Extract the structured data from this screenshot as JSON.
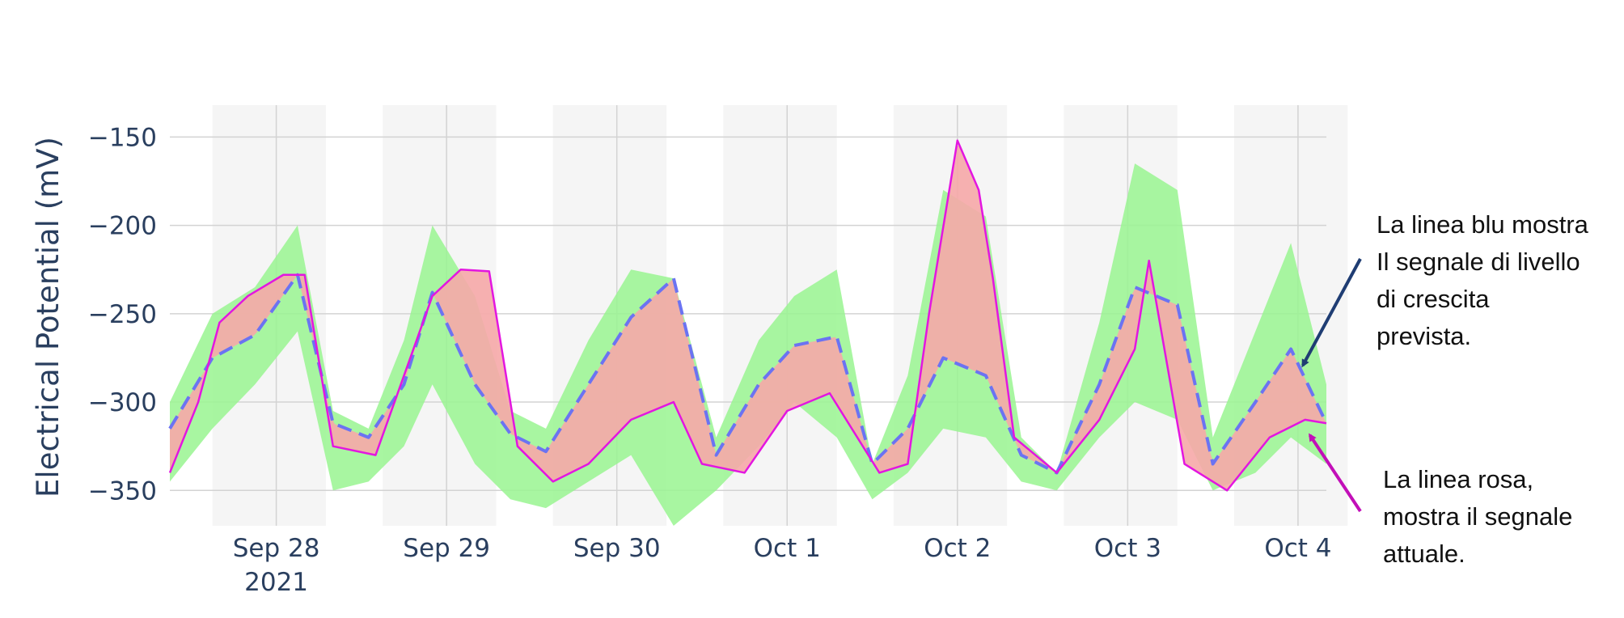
{
  "chart_data": {
    "type": "line",
    "ylabel": "Electrical Potential (mV)",
    "x_ticks": [
      {
        "label": "Sep 28",
        "sublabel": "2021",
        "date": "2021-09-28T12:00"
      },
      {
        "label": "Sep 29",
        "sublabel": "",
        "date": "2021-09-29T12:00"
      },
      {
        "label": "Sep 30",
        "sublabel": "",
        "date": "2021-09-30T12:00"
      },
      {
        "label": "Oct 1",
        "sublabel": "",
        "date": "2021-10-01T12:00"
      },
      {
        "label": "Oct 2",
        "sublabel": "",
        "date": "2021-10-02T12:00"
      },
      {
        "label": "Oct 3",
        "sublabel": "",
        "date": "2021-10-03T12:00"
      },
      {
        "label": "Oct 4",
        "sublabel": "",
        "date": "2021-10-04T12:00"
      }
    ],
    "xlim": [
      "2021-09-27T21:00",
      "2021-10-04T16:00"
    ],
    "ylim": [
      -370,
      -132
    ],
    "y_ticks": [
      -150,
      -200,
      -250,
      -300,
      -350
    ],
    "grid": true,
    "night_bands": [
      [
        "2021-09-28T03:00",
        "2021-09-28T19:00"
      ],
      [
        "2021-09-29T03:00",
        "2021-09-29T19:00"
      ],
      [
        "2021-09-30T03:00",
        "2021-09-30T19:00"
      ],
      [
        "2021-10-01T03:00",
        "2021-10-01T19:00"
      ],
      [
        "2021-10-02T03:00",
        "2021-10-02T19:00"
      ],
      [
        "2021-10-03T03:00",
        "2021-10-03T19:00"
      ],
      [
        "2021-10-04T03:00",
        "2021-10-04T19:00"
      ]
    ],
    "colors": {
      "band": "#99f590",
      "deviation": "#f6a8a8",
      "predicted": "#6b73f2",
      "actual": "#e316e0",
      "night": "#f5f5f5",
      "grid": "#d3d3d3",
      "blue_arrow": "#1f3d73",
      "pink_arrow": "#c20fb8"
    },
    "series": [
      {
        "style": "band",
        "x": [
          "2021-09-27T21:00",
          "2021-09-28T03:00",
          "2021-09-28T09:00",
          "2021-09-28T15:00",
          "2021-09-28T20:00",
          "2021-09-29T01:00",
          "2021-09-29T06:00",
          "2021-09-29T10:00",
          "2021-09-29T16:00",
          "2021-09-29T21:00",
          "2021-09-30T02:00",
          "2021-09-30T08:00",
          "2021-09-30T14:00",
          "2021-09-30T20:00",
          "2021-10-01T02:00",
          "2021-10-01T08:00",
          "2021-10-01T13:00",
          "2021-10-01T19:00",
          "2021-10-02T00:00",
          "2021-10-02T05:00",
          "2021-10-02T10:00",
          "2021-10-02T16:00",
          "2021-10-02T21:00",
          "2021-10-03T02:00",
          "2021-10-03T08:00",
          "2021-10-03T13:00",
          "2021-10-03T19:00",
          "2021-10-04T00:00",
          "2021-10-04T06:00",
          "2021-10-04T11:00",
          "2021-10-04T16:00"
        ],
        "upper": [
          -300,
          -250,
          -235,
          -200,
          -305,
          -315,
          -265,
          -200,
          -240,
          -305,
          -315,
          -265,
          -225,
          -230,
          -320,
          -265,
          -240,
          -225,
          -335,
          -285,
          -180,
          -195,
          -320,
          -340,
          -255,
          -165,
          -180,
          -320,
          -260,
          -210,
          -290
        ],
        "lower": [
          -345,
          -315,
          -290,
          -260,
          -350,
          -345,
          -325,
          -290,
          -335,
          -355,
          -360,
          -345,
          -330,
          -370,
          -350,
          -325,
          -300,
          -320,
          -355,
          -340,
          -315,
          -320,
          -345,
          -350,
          -320,
          -300,
          -310,
          -350,
          -340,
          -320,
          -335
        ]
      },
      {
        "name": "Il segnale di livello di crescita prevista",
        "style": "dashed",
        "x": [
          "2021-09-27T21:00",
          "2021-09-28T03:00",
          "2021-09-28T09:00",
          "2021-09-28T15:00",
          "2021-09-28T20:00",
          "2021-09-29T01:00",
          "2021-09-29T06:00",
          "2021-09-29T10:00",
          "2021-09-29T16:00",
          "2021-09-29T21:00",
          "2021-09-30T02:00",
          "2021-09-30T08:00",
          "2021-09-30T14:00",
          "2021-09-30T20:00",
          "2021-10-01T02:00",
          "2021-10-01T08:00",
          "2021-10-01T13:00",
          "2021-10-01T19:00",
          "2021-10-02T00:00",
          "2021-10-02T05:00",
          "2021-10-02T10:00",
          "2021-10-02T16:00",
          "2021-10-02T21:00",
          "2021-10-03T02:00",
          "2021-10-03T08:00",
          "2021-10-03T13:00",
          "2021-10-03T19:00",
          "2021-10-04T00:00",
          "2021-10-04T06:00",
          "2021-10-04T11:00",
          "2021-10-04T16:00"
        ],
        "y": [
          -315,
          -275,
          -262,
          -228,
          -312,
          -320,
          -290,
          -238,
          -290,
          -318,
          -328,
          -290,
          -252,
          -230,
          -330,
          -290,
          -268,
          -263,
          -335,
          -315,
          -275,
          -285,
          -330,
          -340,
          -290,
          -235,
          -245,
          -335,
          -300,
          -270,
          -312
        ]
      },
      {
        "name": "Il segnale attuale",
        "style": "solid",
        "x": [
          "2021-09-27T21:00",
          "2021-09-28T01:00",
          "2021-09-28T04:00",
          "2021-09-28T08:00",
          "2021-09-28T13:00",
          "2021-09-28T16:00",
          "2021-09-28T20:00",
          "2021-09-29T02:00",
          "2021-09-29T06:00",
          "2021-09-29T10:00",
          "2021-09-29T14:00",
          "2021-09-29T18:00",
          "2021-09-29T22:00",
          "2021-09-30T03:00",
          "2021-09-30T08:00",
          "2021-09-30T14:00",
          "2021-09-30T20:00",
          "2021-10-01T00:00",
          "2021-10-01T06:00",
          "2021-10-01T12:00",
          "2021-10-01T18:00",
          "2021-10-02T01:00",
          "2021-10-02T05:00",
          "2021-10-02T08:00",
          "2021-10-02T12:00",
          "2021-10-02T15:00",
          "2021-10-02T17:00",
          "2021-10-02T20:00",
          "2021-10-03T02:00",
          "2021-10-03T08:00",
          "2021-10-03T13:00",
          "2021-10-03T15:00",
          "2021-10-03T20:00",
          "2021-10-04T02:00",
          "2021-10-04T08:00",
          "2021-10-04T13:00",
          "2021-10-04T16:00"
        ],
        "y": [
          -340,
          -300,
          -255,
          -240,
          -228,
          -228,
          -325,
          -330,
          -285,
          -240,
          -225,
          -226,
          -325,
          -345,
          -335,
          -310,
          -300,
          -335,
          -340,
          -305,
          -295,
          -340,
          -335,
          -250,
          -152,
          -180,
          -230,
          -320,
          -340,
          -310,
          -270,
          -220,
          -335,
          -350,
          -320,
          -310,
          -312
        ]
      }
    ]
  },
  "annotations": {
    "blue": {
      "lines": [
        "La linea blu mostra",
        "Il segnale di livello",
        "di crescita",
        "prevista."
      ],
      "target": {
        "x": "2021-10-04T12:00",
        "y": -282
      }
    },
    "pink": {
      "lines": [
        "La linea rosa,",
        "mostra il segnale",
        "attuale."
      ],
      "target": {
        "x": "2021-10-04T13:00",
        "y": -316
      }
    }
  }
}
